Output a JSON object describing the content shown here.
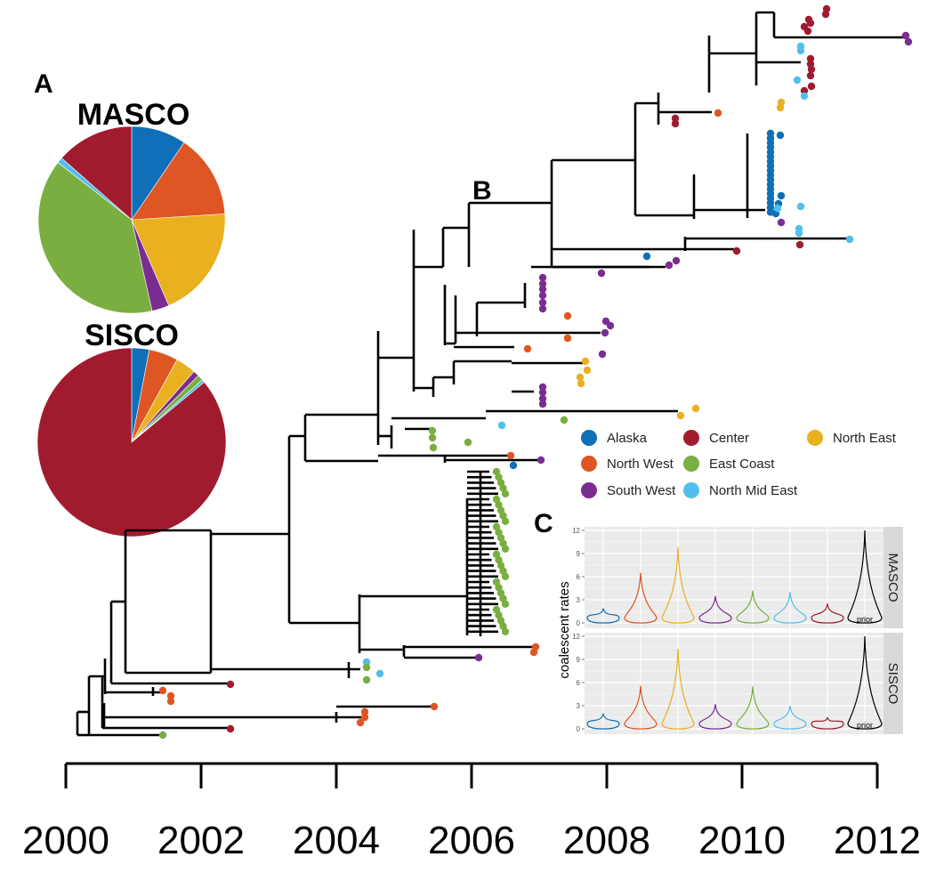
{
  "colors": {
    "Alaska": "#0f6fb8",
    "Center": "#a11b2f",
    "North East": "#e9b020",
    "North West": "#de5623",
    "East Coast": "#7aae40",
    "North Mid East": "#52bfea",
    "South West": "#7a2d91",
    "prior": "#000000"
  },
  "panels": {
    "a": "A",
    "b": "B",
    "c": "C"
  },
  "chart_data": [
    {
      "type": "pie",
      "panel": "A",
      "title": "MASCO",
      "categories": [
        "Alaska",
        "North West",
        "North East",
        "South West",
        "East Coast",
        "North Mid East",
        "Center"
      ],
      "values": [
        9.5,
        14.5,
        19.5,
        3.0,
        39.0,
        1.0,
        13.5
      ]
    },
    {
      "type": "pie",
      "panel": "A",
      "title": "SISCO",
      "categories": [
        "Alaska",
        "North West",
        "North East",
        "South West",
        "East Coast",
        "North Mid East",
        "Center"
      ],
      "values": [
        3.0,
        5.0,
        3.5,
        1.0,
        1.0,
        0.5,
        86.0
      ]
    },
    {
      "type": "tree",
      "panel": "B",
      "x_ticks": [
        "2000",
        "2002",
        "2004",
        "2006",
        "2008",
        "2010",
        "2012"
      ],
      "x_range": [
        2000,
        2012
      ],
      "legend": [
        "Alaska",
        "Center",
        "North East",
        "North West",
        "East Coast",
        "South West",
        "North Mid East"
      ],
      "legend_placement": "right, middle"
    },
    {
      "type": "violin",
      "panel": "C",
      "ylabel": "coalescent rates",
      "y_ticks": [
        "0",
        "3",
        "6",
        "9",
        "12"
      ],
      "ylim": [
        0,
        12
      ],
      "facets": [
        {
          "name": "MASCO",
          "series": [
            {
              "name": "Alaska",
              "max": 1.9
            },
            {
              "name": "North West",
              "max": 6.5
            },
            {
              "name": "North East",
              "max": 9.8
            },
            {
              "name": "South West",
              "max": 3.5
            },
            {
              "name": "East Coast",
              "max": 4.2
            },
            {
              "name": "North Mid East",
              "max": 4.0
            },
            {
              "name": "Center",
              "max": 2.5
            },
            {
              "name": "prior",
              "max": 12,
              "label": "prior"
            }
          ]
        },
        {
          "name": "SISCO",
          "series": [
            {
              "name": "Alaska",
              "max": 2.0
            },
            {
              "name": "North West",
              "max": 5.6
            },
            {
              "name": "North East",
              "max": 10.4
            },
            {
              "name": "South West",
              "max": 3.2
            },
            {
              "name": "East Coast",
              "max": 5.5
            },
            {
              "name": "North Mid East",
              "max": 3.0
            },
            {
              "name": "Center",
              "max": 1.5
            },
            {
              "name": "prior",
              "max": 12,
              "label": "prior"
            }
          ]
        }
      ]
    }
  ]
}
